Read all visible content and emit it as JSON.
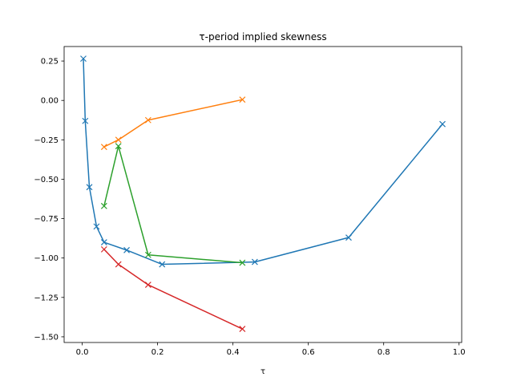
{
  "chart_data": {
    "type": "line",
    "title": "τ-period implied skewness",
    "xlabel": "τ",
    "ylabel": "",
    "xlim": [
      -0.048,
      1.007
    ],
    "ylim": [
      -1.536,
      0.342
    ],
    "x_ticks": [
      0.0,
      0.2,
      0.4,
      0.6,
      0.8,
      1.0
    ],
    "x_tick_labels": [
      "0.0",
      "0.2",
      "0.4",
      "0.6",
      "0.8",
      "1.0"
    ],
    "y_ticks": [
      0.25,
      0.0,
      -0.25,
      -0.5,
      -0.75,
      -1.0,
      -1.25,
      -1.5
    ],
    "y_tick_labels": [
      "0.25",
      "0.00",
      "−0.25",
      "−0.50",
      "−0.75",
      "−1.00",
      "−1.25",
      "−1.50"
    ],
    "grid": false,
    "legend": false,
    "marker": "x",
    "series": [
      {
        "color": "#1f77b4",
        "x": [
          0.003,
          0.008,
          0.019,
          0.038,
          0.058,
          0.118,
          0.212,
          0.458,
          0.707,
          0.956
        ],
        "y": [
          0.265,
          -0.13,
          -0.55,
          -0.8,
          -0.9,
          -0.95,
          -1.04,
          -1.025,
          -0.87,
          -0.15
        ]
      },
      {
        "color": "#ff7f0e",
        "x": [
          0.058,
          0.096,
          0.175,
          0.425
        ],
        "y": [
          -0.295,
          -0.25,
          -0.125,
          0.005
        ]
      },
      {
        "color": "#2ca02c",
        "x": [
          0.058,
          0.096,
          0.175,
          0.425
        ],
        "y": [
          -0.67,
          -0.29,
          -0.98,
          -1.03
        ]
      },
      {
        "color": "#d62728",
        "x": [
          0.058,
          0.096,
          0.175,
          0.425
        ],
        "y": [
          -0.945,
          -1.04,
          -1.17,
          -1.45
        ]
      }
    ]
  }
}
